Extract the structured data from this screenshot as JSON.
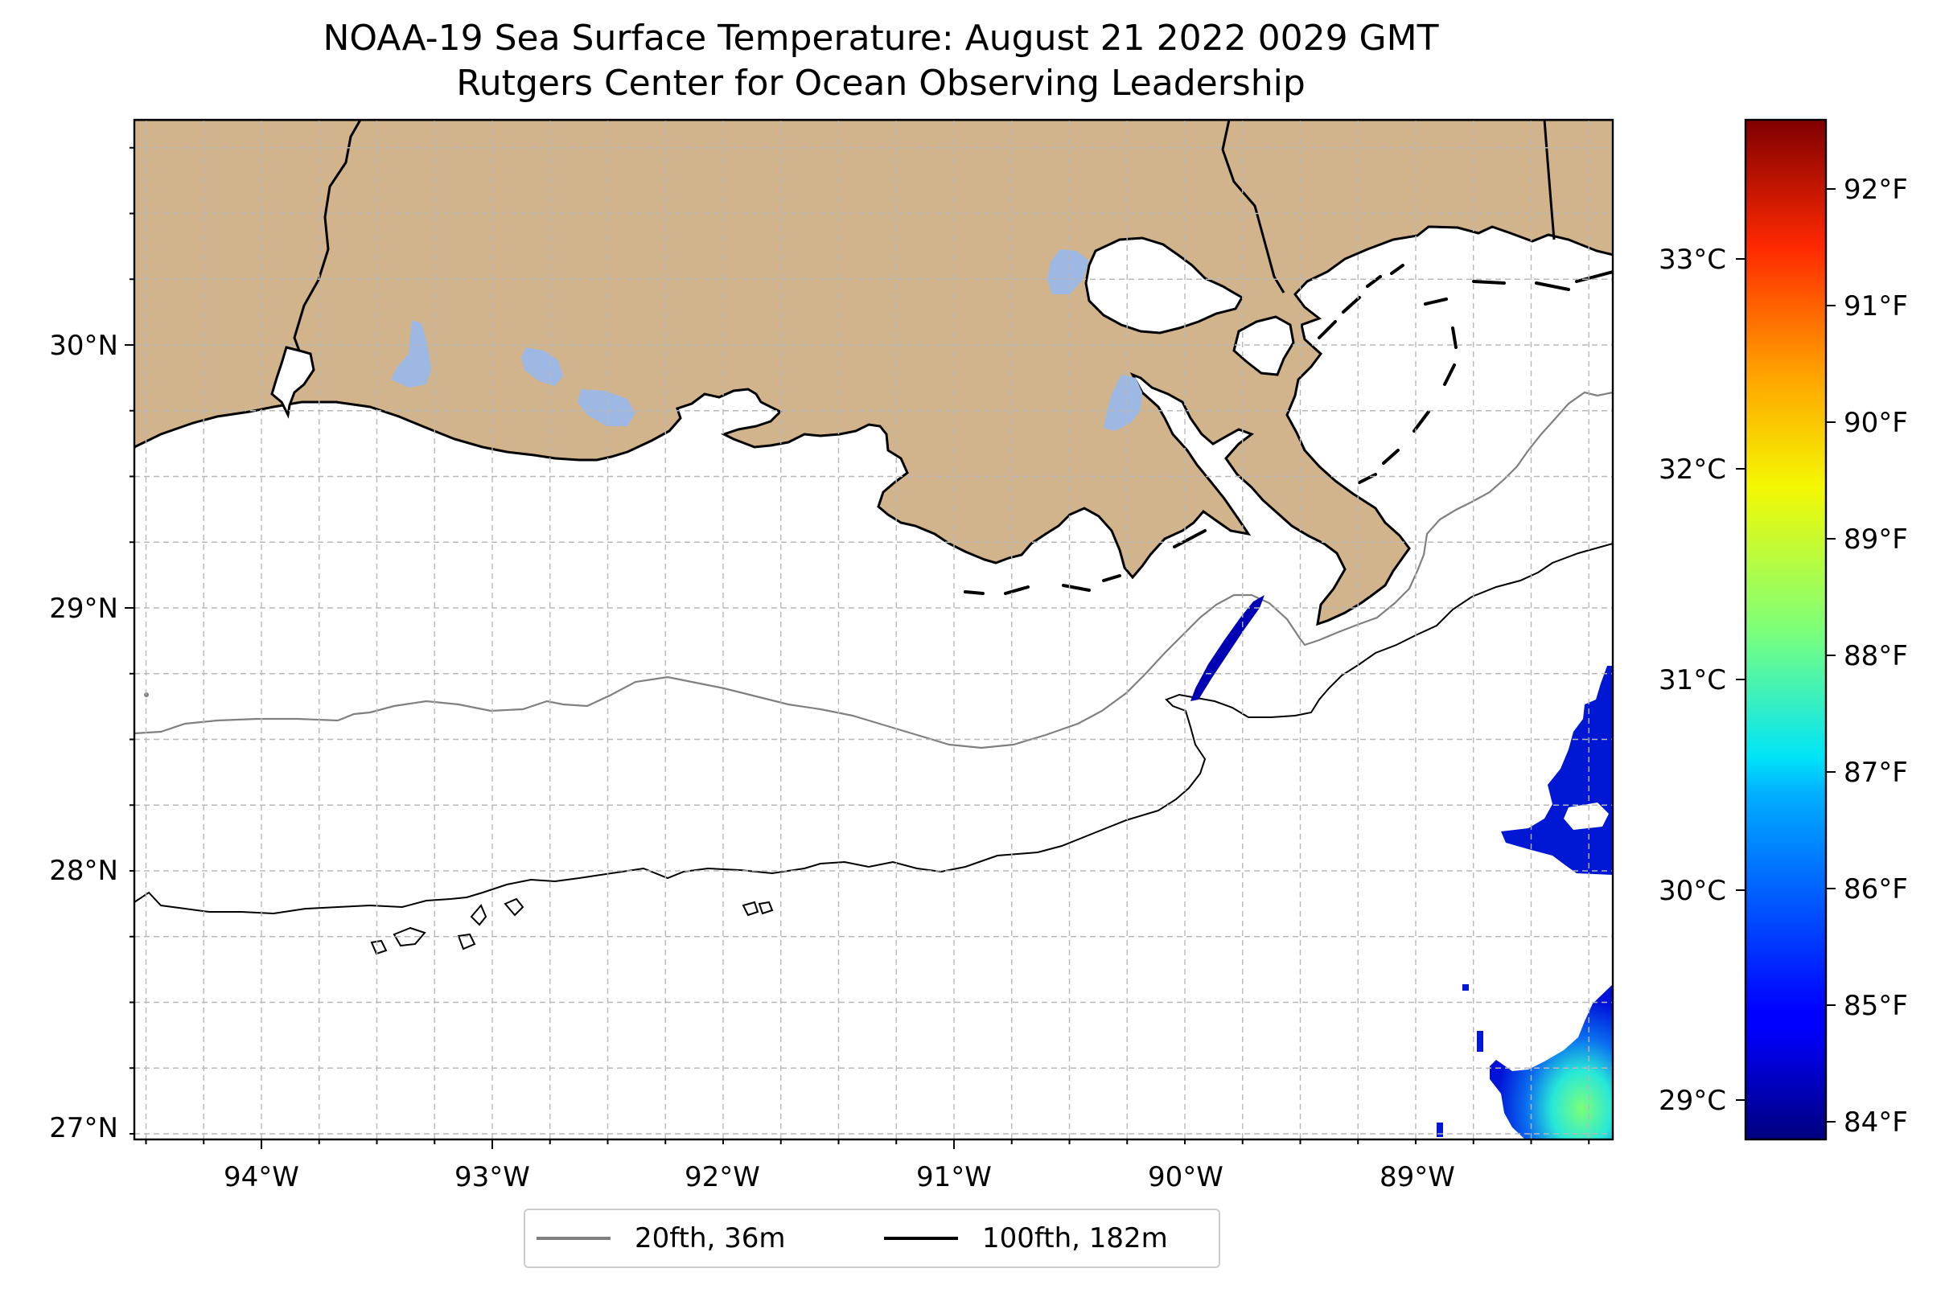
{
  "title": {
    "line1": "NOAA-19 Sea Surface Temperature: August 21 2022 0029 GMT",
    "line2": "Rutgers Center for Ocean Observing Leadership"
  },
  "map": {
    "lon_ticks": [
      "94°W",
      "93°W",
      "92°W",
      "91°W",
      "90°W",
      "89°W"
    ],
    "lat_ticks": [
      "30°N",
      "29°N",
      "28°N",
      "27°N"
    ],
    "colors": {
      "land": "#d2b48c",
      "lakes": "#9db9e3",
      "ocean": "#ffffff",
      "grid": "#b8b8b8",
      "coastline": "#000000",
      "isobath_20": "#808080",
      "isobath_100": "#000000"
    }
  },
  "legend": {
    "items": [
      {
        "label": "20fth, 36m",
        "color": "#808080"
      },
      {
        "label": "100fth, 182m",
        "color": "#000000"
      }
    ]
  },
  "colorbar": {
    "colormap": "jet",
    "celsius_ticks": [
      "33°C",
      "32°C",
      "31°C",
      "30°C",
      "29°C"
    ],
    "fahrenheit_ticks": [
      "92°F",
      "91°F",
      "90°F",
      "89°F",
      "88°F",
      "87°F",
      "86°F",
      "85°F",
      "84°F"
    ]
  }
}
